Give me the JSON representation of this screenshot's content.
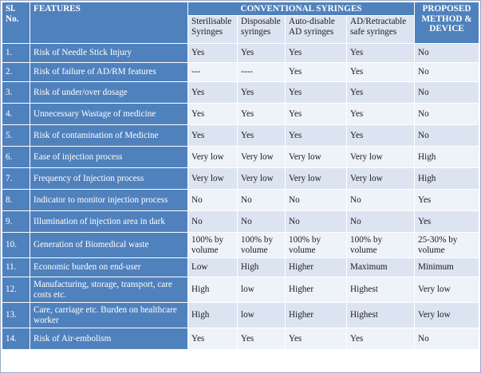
{
  "header": {
    "sl_no": "Sl. No.",
    "features": "FEATURES",
    "conventional": "CONVENTIONAL SYRINGES",
    "proposed": "PROPOSED METHOD & DEVICE",
    "sub": [
      "Sterilisable Syringes",
      "Disposable syringes",
      "Auto-disable AD syringes",
      "AD/Retractable safe syringes"
    ]
  },
  "rows": [
    {
      "sl": "1.",
      "feature": "Risk of Needle Stick Injury",
      "values": [
        "Yes",
        "Yes",
        "Yes",
        "Yes",
        "No"
      ]
    },
    {
      "sl": "2.",
      "feature": "Risk of failure of AD/RM features",
      "values": [
        "---",
        "----",
        "Yes",
        "Yes",
        "No"
      ]
    },
    {
      "sl": "3.",
      "feature": "Risk of under/over dosage",
      "values": [
        "Yes",
        "Yes",
        "Yes",
        "Yes",
        "No"
      ]
    },
    {
      "sl": "4.",
      "feature": "Unnecessary Wastage of medicine",
      "values": [
        "Yes",
        "Yes",
        "Yes",
        "Yes",
        "No"
      ]
    },
    {
      "sl": "5.",
      "feature": "Risk of contamination of Medicine",
      "values": [
        "Yes",
        "Yes",
        "Yes",
        "Yes",
        "No"
      ]
    },
    {
      "sl": "6.",
      "feature": "Ease of injection process",
      "values": [
        "Very low",
        "Very low",
        "Very low",
        "Very low",
        "High"
      ]
    },
    {
      "sl": "7.",
      "feature": "Frequency of Injection process",
      "values": [
        "Very low",
        "Very low",
        "Very low",
        "Very low",
        "High"
      ]
    },
    {
      "sl": "8.",
      "feature": "Indicator to monitor injection process",
      "values": [
        "No",
        "No",
        "No",
        "No",
        "Yes"
      ]
    },
    {
      "sl": "9.",
      "feature": "Illumination of injection area in dark",
      "values": [
        "No",
        "No",
        "No",
        "No",
        "Yes"
      ]
    },
    {
      "sl": "10.",
      "feature": "Generation of Biomedical waste",
      "values": [
        "100% by volume",
        "100% by volume",
        "100% by volume",
        "100% by volume",
        "25-30% by volume"
      ]
    },
    {
      "sl": "11.",
      "feature": "Economic burden on end-user",
      "values": [
        "Low",
        "High",
        "Higher",
        "Maximum",
        "Minimum"
      ]
    },
    {
      "sl": "12.",
      "feature": "Manufacturing, storage, transport, care costs etc.",
      "values": [
        "High",
        "low",
        "Higher",
        "Highest",
        "Very low"
      ]
    },
    {
      "sl": "13.",
      "feature": "Care, carriage etc. Burden on healthcare worker",
      "values": [
        "High",
        "low",
        "Higher",
        "Highest",
        "Very low"
      ]
    },
    {
      "sl": "14.",
      "feature": "Risk of Air-embolism",
      "values": [
        "Yes",
        "Yes",
        "Yes",
        "Yes",
        "No"
      ]
    }
  ],
  "colors": {
    "header_blue": "#4f81bd",
    "band_light": "#dce4f2",
    "band_lighter": "#eef2f9"
  }
}
